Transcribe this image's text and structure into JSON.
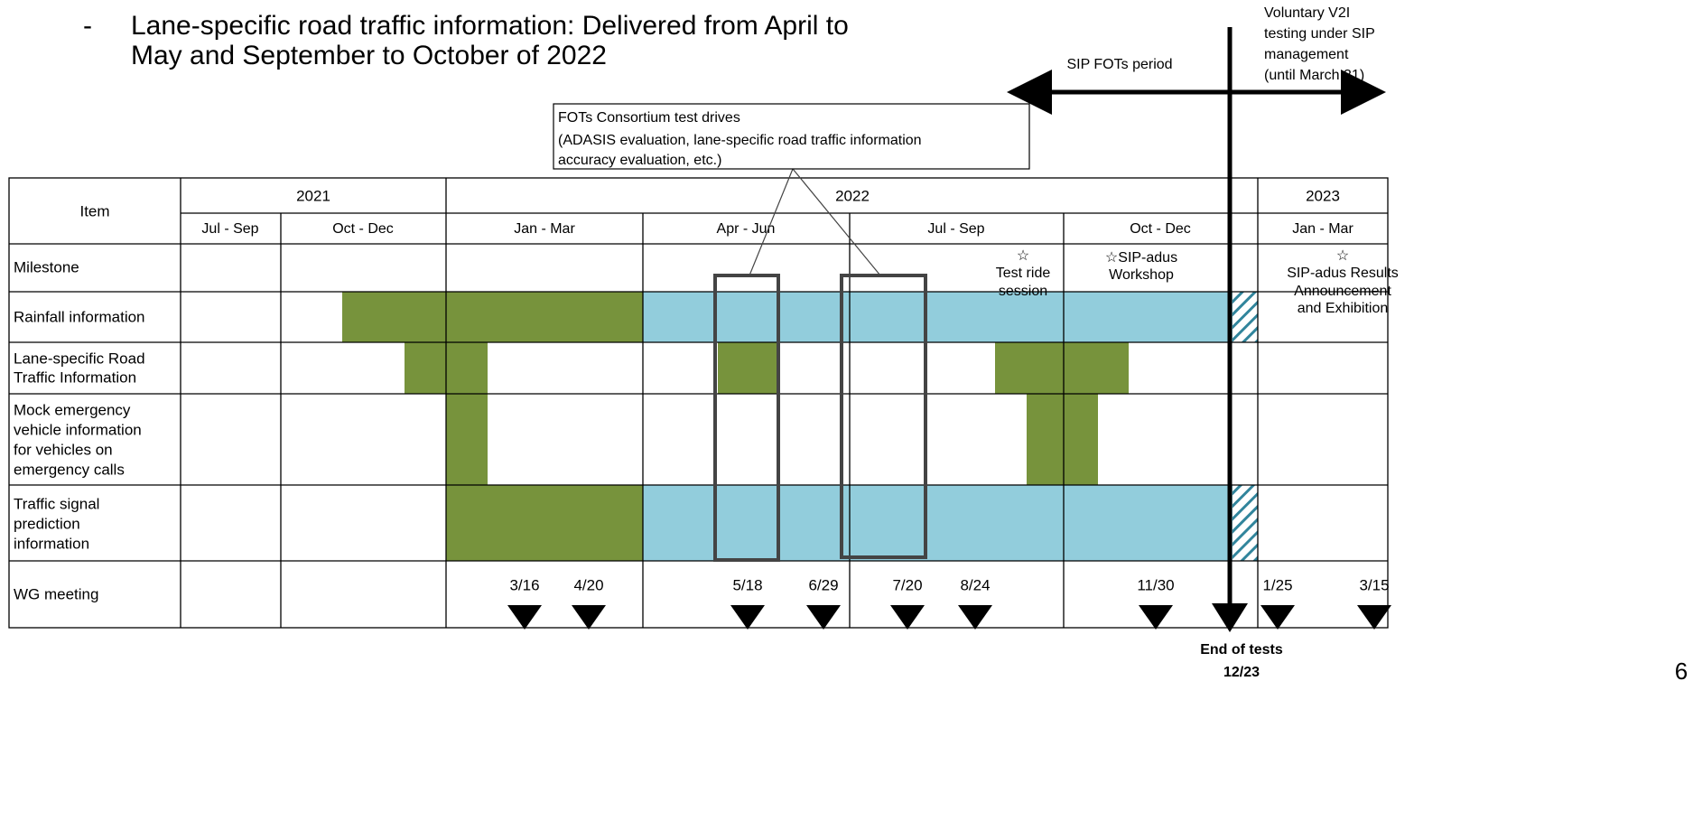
{
  "bullet": {
    "marker": "-",
    "lines": [
      "Lane-specific road traffic information: Delivered from April to",
      "May and September to October of 2022"
    ]
  },
  "callout": [
    "FOTs Consortium test drives",
    "(ADASIS evaluation, lane-specific road traffic information",
    "accuracy evaluation, etc.)"
  ],
  "sip_period": "SIP FOTs period",
  "voluntary": [
    "Voluntary V2I",
    "testing under SIP",
    "management",
    "(until March 31)"
  ],
  "table": {
    "item_header": "Item",
    "years": [
      "2021",
      "2022",
      "2023"
    ],
    "quarters": [
      "Jul - Sep",
      "Oct - Dec",
      "Jan - Mar",
      "Apr - Jun",
      "Jul - Sep",
      "Oct - Dec",
      "Jan - Mar"
    ],
    "rows": [
      [
        "Milestone"
      ],
      [
        "Rainfall information"
      ],
      [
        "Lane-specific Road",
        "Traffic Information"
      ],
      [
        "Mock emergency",
        "vehicle information",
        "for vehicles on",
        "emergency calls"
      ],
      [
        "Traffic signal",
        "prediction",
        "information"
      ],
      [
        "WG meeting"
      ]
    ]
  },
  "milestones": [
    [
      "☆",
      "Test ride",
      "session"
    ],
    [
      "☆SIP-adus",
      "Workshop"
    ],
    [
      "☆",
      "SIP-adus Results",
      "Announcement",
      "and Exhibition"
    ]
  ],
  "wg_meetings": [
    "3/16",
    "4/20",
    "5/18",
    "6/29",
    "7/20",
    "8/24",
    "11/30",
    "1/25",
    "3/15"
  ],
  "end_of_tests": [
    "End of tests",
    "12/23"
  ],
  "page_number": "6"
}
